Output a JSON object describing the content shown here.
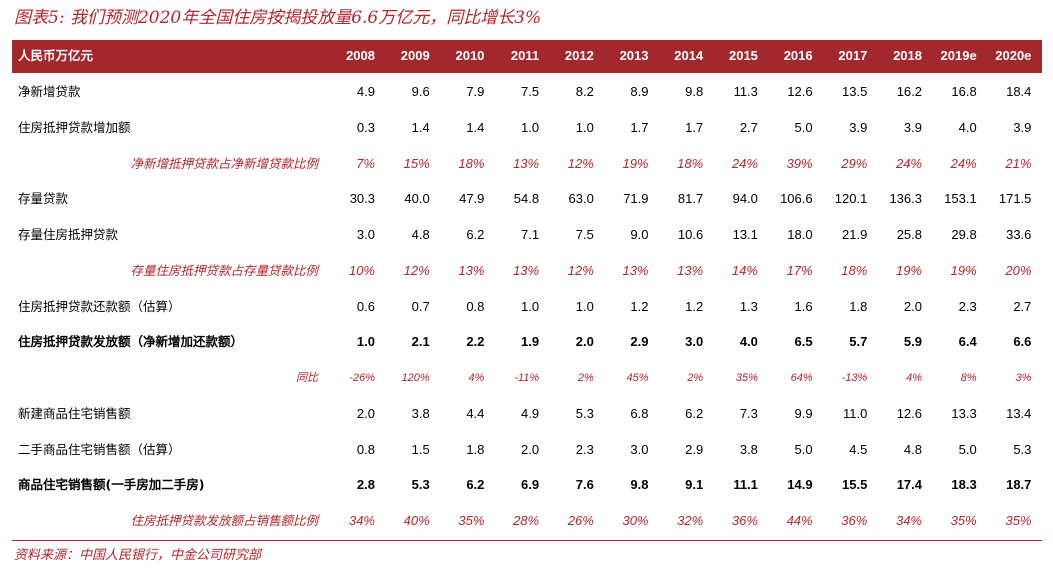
{
  "title": "图表5: 我们预测2020年全国住房按揭投放量6.6万亿元，同比增长3%",
  "table": {
    "header": [
      "人民币万亿元",
      "2008",
      "2009",
      "2010",
      "2011",
      "2012",
      "2013",
      "2014",
      "2015",
      "2016",
      "2017",
      "2018",
      "2019e",
      "2020e"
    ],
    "rows": [
      {
        "label": "净新增贷款",
        "style": "normal",
        "values": [
          "4.9",
          "9.6",
          "7.9",
          "7.5",
          "8.2",
          "8.9",
          "9.8",
          "11.3",
          "12.6",
          "13.5",
          "16.2",
          "16.8",
          "18.4"
        ]
      },
      {
        "label": "住房抵押贷款增加额",
        "style": "normal",
        "values": [
          "0.3",
          "1.4",
          "1.4",
          "1.0",
          "1.0",
          "1.7",
          "1.7",
          "2.7",
          "5.0",
          "3.9",
          "3.9",
          "4.0",
          "3.9"
        ]
      },
      {
        "label": "净新增抵押贷款占净新增贷款比例",
        "style": "ratio",
        "values": [
          "7%",
          "15%",
          "18%",
          "13%",
          "12%",
          "19%",
          "18%",
          "24%",
          "39%",
          "29%",
          "24%",
          "24%",
          "21%"
        ]
      },
      {
        "label": "存量贷款",
        "style": "normal",
        "values": [
          "30.3",
          "40.0",
          "47.9",
          "54.8",
          "63.0",
          "71.9",
          "81.7",
          "94.0",
          "106.6",
          "120.1",
          "136.3",
          "153.1",
          "171.5"
        ]
      },
      {
        "label": "存量住房抵押贷款",
        "style": "normal",
        "values": [
          "3.0",
          "4.8",
          "6.2",
          "7.1",
          "7.5",
          "9.0",
          "10.6",
          "13.1",
          "18.0",
          "21.9",
          "25.8",
          "29.8",
          "33.6"
        ]
      },
      {
        "label": "存量住房抵押贷款占存量贷款比例",
        "style": "ratio",
        "values": [
          "10%",
          "12%",
          "13%",
          "13%",
          "12%",
          "13%",
          "13%",
          "14%",
          "17%",
          "18%",
          "19%",
          "19%",
          "20%"
        ]
      },
      {
        "label": "住房抵押贷款还款额（估算）",
        "style": "normal",
        "values": [
          "0.6",
          "0.7",
          "0.8",
          "1.0",
          "1.0",
          "1.2",
          "1.2",
          "1.3",
          "1.6",
          "1.8",
          "2.0",
          "2.3",
          "2.7"
        ]
      },
      {
        "label": "住房抵押贷款发放额（净新增加还款额）",
        "style": "bold",
        "values": [
          "1.0",
          "2.1",
          "2.2",
          "1.9",
          "2.0",
          "2.9",
          "3.0",
          "4.0",
          "6.5",
          "5.7",
          "5.9",
          "6.4",
          "6.6"
        ]
      },
      {
        "label": "同比",
        "style": "ratio-small",
        "values": [
          "-26%",
          "120%",
          "4%",
          "-11%",
          "2%",
          "45%",
          "2%",
          "35%",
          "64%",
          "-13%",
          "4%",
          "8%",
          "3%"
        ]
      },
      {
        "label": "新建商品住宅销售额",
        "style": "normal",
        "values": [
          "2.0",
          "3.8",
          "4.4",
          "4.9",
          "5.3",
          "6.8",
          "6.2",
          "7.3",
          "9.9",
          "11.0",
          "12.6",
          "13.3",
          "13.4"
        ]
      },
      {
        "label": "二手商品住宅销售额（估算）",
        "style": "normal",
        "values": [
          "0.8",
          "1.5",
          "1.8",
          "2.0",
          "2.3",
          "3.0",
          "2.9",
          "3.8",
          "5.0",
          "4.5",
          "4.8",
          "5.0",
          "5.3"
        ]
      },
      {
        "label": "商品住宅销售额(一手房加二手房)",
        "style": "bold",
        "values": [
          "2.8",
          "5.3",
          "6.2",
          "6.9",
          "7.6",
          "9.8",
          "9.1",
          "11.1",
          "14.9",
          "15.5",
          "17.4",
          "18.3",
          "18.7"
        ]
      },
      {
        "label": "住房抵押贷款发放额占销售额比例",
        "style": "ratio",
        "values": [
          "34%",
          "40%",
          "35%",
          "28%",
          "26%",
          "30%",
          "32%",
          "36%",
          "44%",
          "36%",
          "34%",
          "35%",
          "35%"
        ]
      }
    ]
  },
  "source": "资料来源：中国人民银行，中金公司研究部"
}
